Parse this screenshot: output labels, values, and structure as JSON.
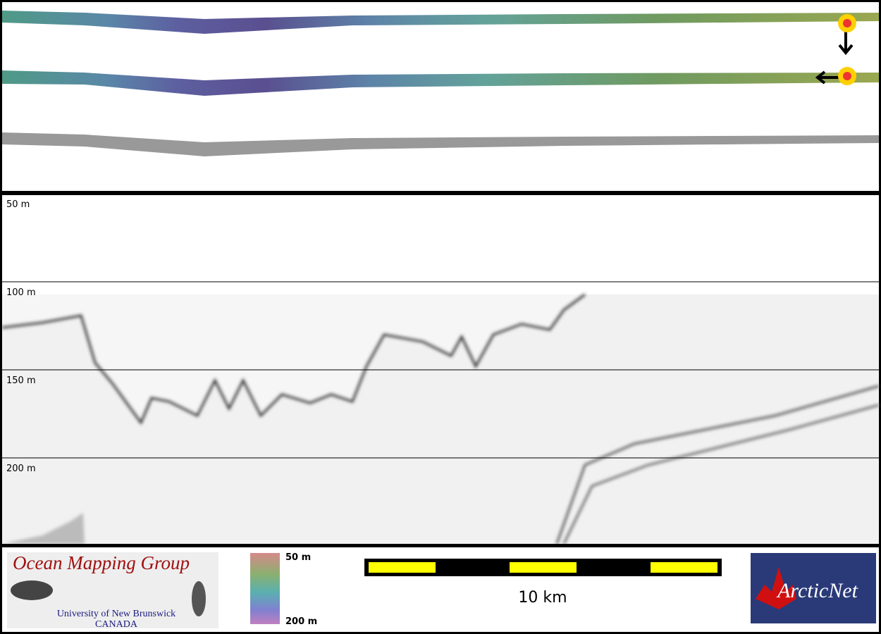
{
  "echogram": {
    "depth_labels": [
      "50 m",
      "100 m",
      "150 m",
      "200 m"
    ]
  },
  "footer": {
    "logo_left": {
      "title": "Ocean Mapping Group",
      "line1": "University of New Brunswick",
      "line2": "CANADA"
    },
    "colorbar": {
      "top": "50 m",
      "bottom": "200 m"
    },
    "scale_bar": {
      "label": "10 km"
    },
    "logo_right": {
      "title": "ArcticNet"
    }
  }
}
